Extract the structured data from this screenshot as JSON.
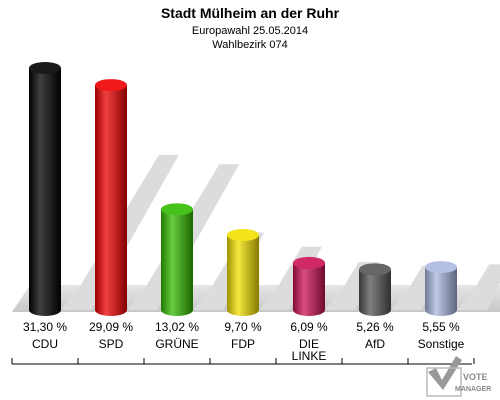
{
  "chart_data": {
    "type": "bar",
    "title": "Stadt Mülheim an der Ruhr",
    "subtitle_1": "Europawahl 25.05.2014",
    "subtitle_2": "Wahlbezirk 074",
    "categories": [
      "CDU",
      "SPD",
      "GRÜNE",
      "FDP",
      "DIE LINKE",
      "AfD",
      "Sonstige"
    ],
    "category_lines": [
      [
        "CDU"
      ],
      [
        "SPD"
      ],
      [
        "GRÜNE"
      ],
      [
        "FDP"
      ],
      [
        "DIE",
        "LINKE"
      ],
      [
        "AfD"
      ],
      [
        "Sonstige"
      ]
    ],
    "values": [
      31.3,
      29.09,
      13.02,
      9.7,
      6.09,
      5.26,
      5.55
    ],
    "value_labels": [
      "31,30 %",
      "29,09 %",
      "13,02 %",
      "9,70 %",
      "6,09 %",
      "5,26 %",
      "5,55 %"
    ],
    "colors": [
      "#000000",
      "#ee0000",
      "#33bb00",
      "#f2e000",
      "#cc1155",
      "#555555",
      "#aab8e0"
    ],
    "ylim": [
      0,
      31.3
    ]
  },
  "logo": {
    "line1": "VOTE",
    "line2": "MANAGER"
  }
}
